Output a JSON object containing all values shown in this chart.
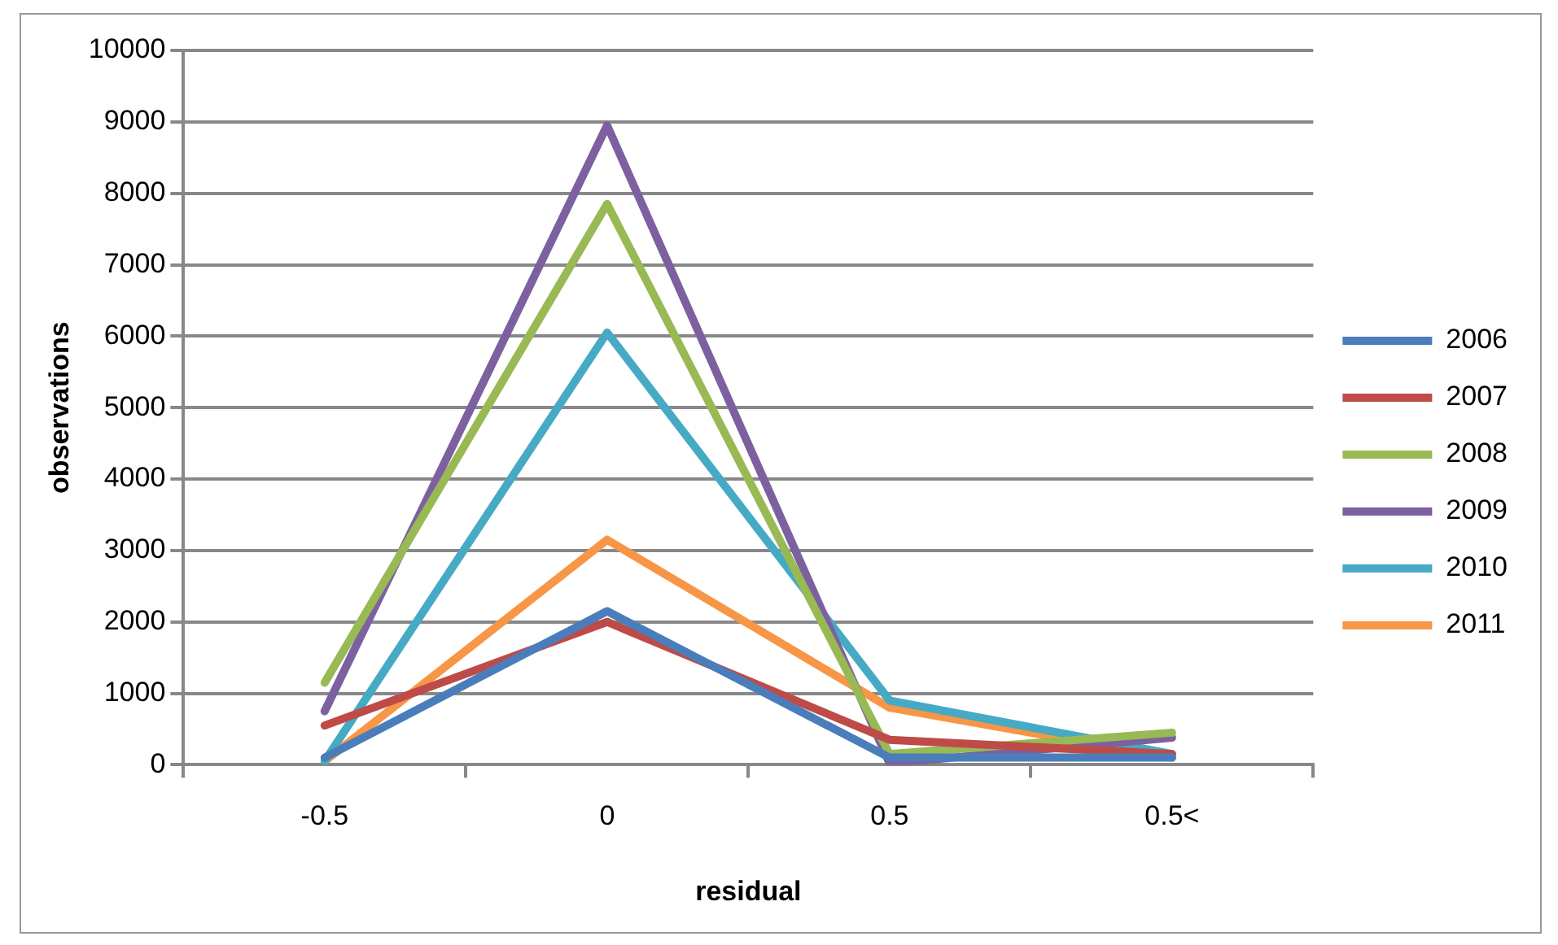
{
  "chart_data": {
    "type": "line",
    "xlabel": "residual",
    "ylabel": "observations",
    "categories": [
      "-0.5",
      "0",
      "0.5",
      "0.5<"
    ],
    "series": [
      {
        "name": "2006",
        "color": "#4a7ebb",
        "values": [
          100,
          2150,
          100,
          100
        ]
      },
      {
        "name": "2007",
        "color": "#be4b48",
        "values": [
          550,
          2000,
          350,
          150
        ]
      },
      {
        "name": "2008",
        "color": "#98b954",
        "values": [
          1150,
          7850,
          150,
          450
        ]
      },
      {
        "name": "2009",
        "color": "#7d60a0",
        "values": [
          750,
          8950,
          20,
          380
        ]
      },
      {
        "name": "2010",
        "color": "#46aac5",
        "values": [
          50,
          6050,
          900,
          150
        ]
      },
      {
        "name": "2011",
        "color": "#f79646",
        "values": [
          50,
          3150,
          800,
          100
        ]
      }
    ],
    "ylim": [
      0,
      10000
    ],
    "yticks": [
      0,
      1000,
      2000,
      3000,
      4000,
      5000,
      6000,
      7000,
      8000,
      9000,
      10000
    ],
    "grid": "y",
    "legend": "right",
    "marker": "none",
    "line_style": "solid"
  }
}
